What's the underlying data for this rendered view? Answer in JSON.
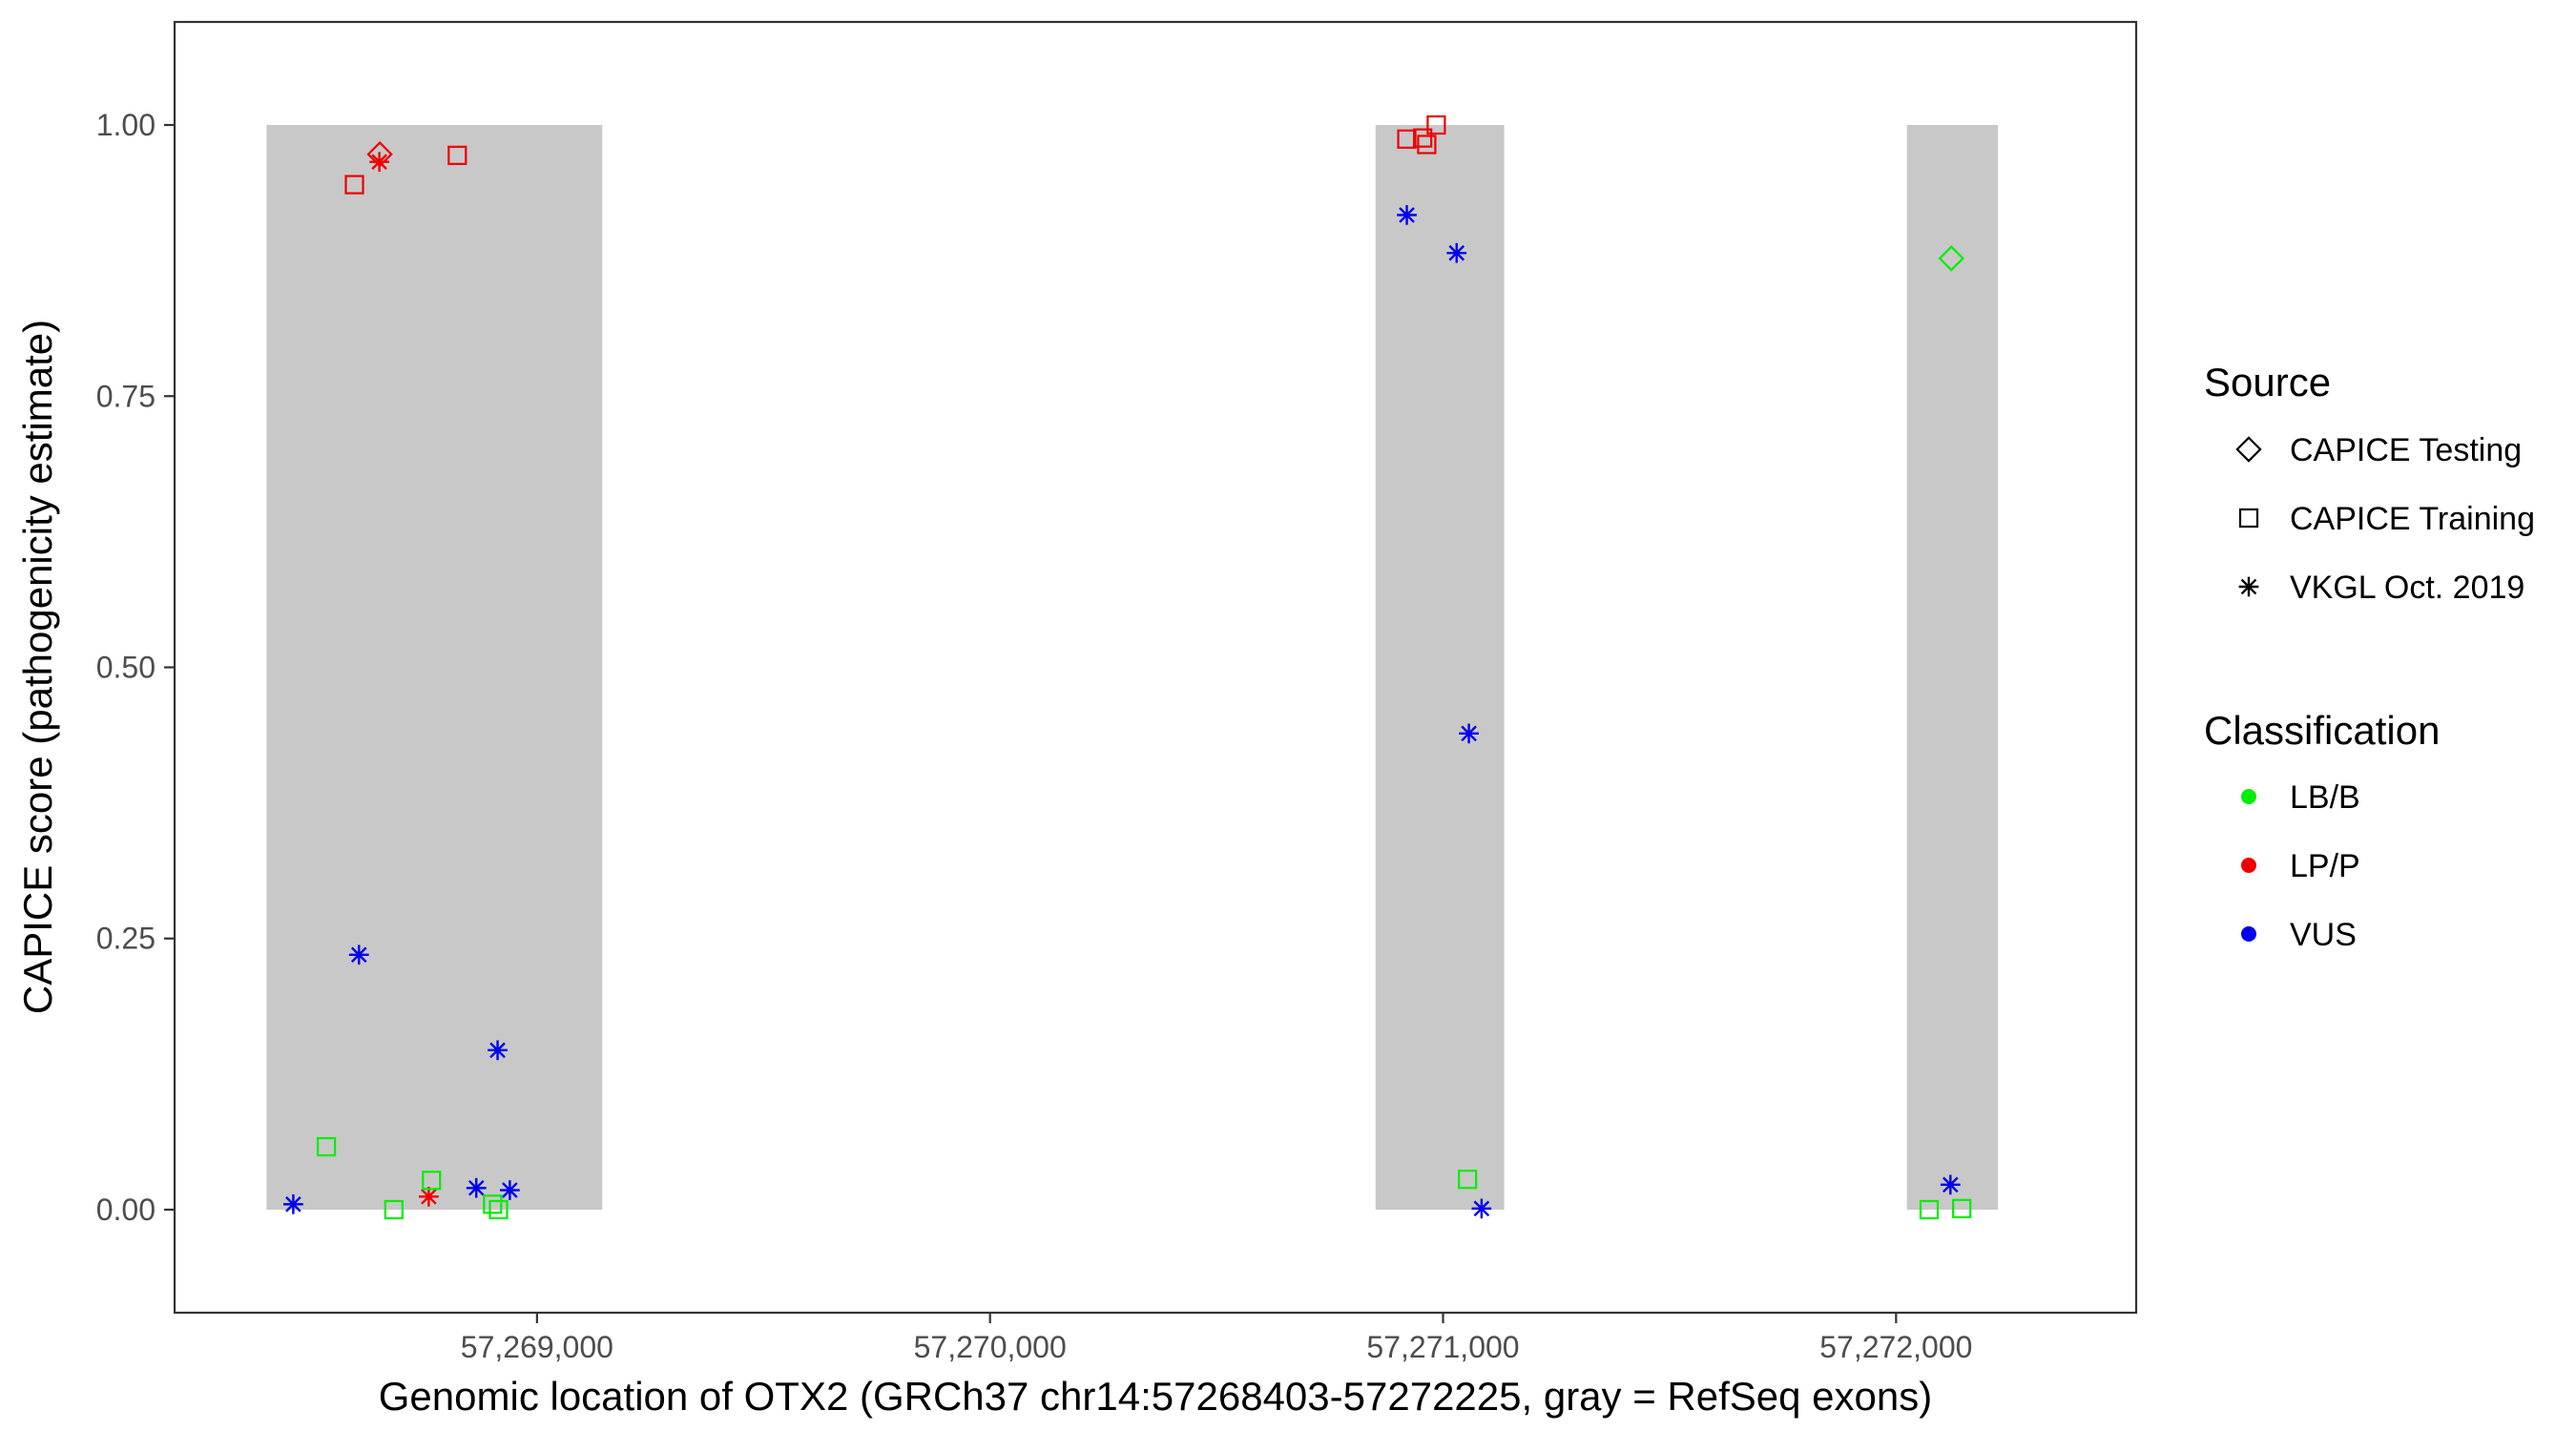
{
  "chart_data": {
    "type": "scatter",
    "title": "",
    "xlabel": "Genomic location of OTX2 (GRCh37 chr14:57268403-57272225, gray = RefSeq exons)",
    "ylabel": "CAPICE score (pathogenicity estimate)",
    "xlim": [
      57268200,
      57272530
    ],
    "ylim": [
      -0.095,
      1.095
    ],
    "grid": false,
    "x_ticks": [
      {
        "value": 57269000,
        "label": "57,269,000"
      },
      {
        "value": 57270000,
        "label": "57,270,000"
      },
      {
        "value": 57271000,
        "label": "57,271,000"
      },
      {
        "value": 57272000,
        "label": "57,272,000"
      }
    ],
    "y_ticks": [
      {
        "value": 0.0,
        "label": "0.00"
      },
      {
        "value": 0.25,
        "label": "0.25"
      },
      {
        "value": 0.5,
        "label": "0.50"
      },
      {
        "value": 0.75,
        "label": "0.75"
      },
      {
        "value": 1.0,
        "label": "1.00"
      }
    ],
    "exons": [
      {
        "start": 57268403,
        "end": 57269144
      },
      {
        "start": 57270851,
        "end": 57271135
      },
      {
        "start": 57272024,
        "end": 57272225
      }
    ],
    "exon_color": "#c8c8c8",
    "legend_position": "right",
    "legend": {
      "source_title": "Source",
      "source_items": [
        {
          "label": "CAPICE Testing",
          "shape": "diamond"
        },
        {
          "label": "CAPICE Training",
          "shape": "square"
        },
        {
          "label": "VKGL Oct. 2019",
          "shape": "asterisk"
        }
      ],
      "class_title": "Classification",
      "class_items": [
        {
          "label": "LB/B",
          "color": "#00ee00"
        },
        {
          "label": "LP/P",
          "color": "#ee0000"
        },
        {
          "label": "VUS",
          "color": "#0000ee"
        }
      ]
    },
    "series": [
      {
        "source": "CAPICE Testing",
        "classification": "LP/P",
        "points": [
          [
            57268653,
            0.973
          ]
        ]
      },
      {
        "source": "CAPICE Training",
        "classification": "LP/P",
        "points": [
          [
            57268597,
            0.945
          ],
          [
            57268824,
            0.972
          ],
          [
            57270920,
            0.987
          ],
          [
            57270955,
            0.988
          ],
          [
            57270964,
            0.982
          ],
          [
            57270985,
            1.0
          ]
        ]
      },
      {
        "source": "VKGL Oct. 2019",
        "classification": "LP/P",
        "points": [
          [
            57268652,
            0.966
          ],
          [
            57268761,
            0.012
          ]
        ]
      },
      {
        "source": "VKGL Oct. 2019",
        "classification": "VUS",
        "points": [
          [
            57268462,
            0.005
          ],
          [
            57268607,
            0.235
          ],
          [
            57268913,
            0.147
          ],
          [
            57268866,
            0.02
          ],
          [
            57268940,
            0.018
          ],
          [
            57270920,
            0.917
          ],
          [
            57271030,
            0.882
          ],
          [
            57271057,
            0.439
          ],
          [
            57271085,
            0.001
          ],
          [
            57272120,
            0.023
          ]
        ]
      },
      {
        "source": "CAPICE Training",
        "classification": "LB/B",
        "points": [
          [
            57268535,
            0.058
          ],
          [
            57268684,
            0.0
          ],
          [
            57268767,
            0.027
          ],
          [
            57268902,
            0.005
          ],
          [
            57268915,
            0.0
          ],
          [
            57271054,
            0.028
          ],
          [
            57272073,
            0.0
          ],
          [
            57272145,
            0.001
          ]
        ]
      },
      {
        "source": "CAPICE Testing",
        "classification": "LB/B",
        "points": [
          [
            57272122,
            0.877
          ]
        ]
      }
    ]
  }
}
